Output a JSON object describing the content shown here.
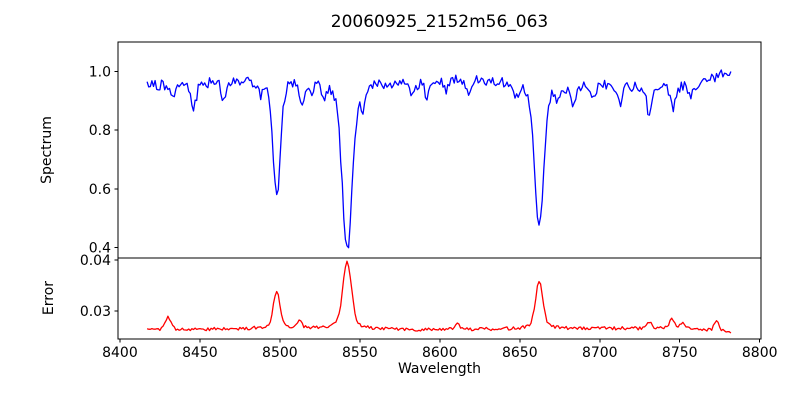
{
  "figure": {
    "title": "20060925_2152m56_063",
    "xlabel": "Wavelength",
    "ylabel_top": "Spectrum",
    "ylabel_bottom": "Error"
  },
  "chart_data": {
    "type": "line",
    "title": "20060925_2152m56_063",
    "xlabel": "Wavelength",
    "legend": "none",
    "grid": false,
    "x_range": [
      8417,
      8782
    ],
    "x_step": 1,
    "xlim": [
      8398.8,
      8800.8
    ],
    "xticks": [
      8400,
      8450,
      8500,
      8550,
      8600,
      8650,
      8700,
      8750,
      8800
    ],
    "subplots": [
      {
        "name": "spectrum",
        "ylabel": "Spectrum",
        "color": "#0000ff",
        "ylim": [
          0.365,
          1.1
        ],
        "yticks": [
          1.0,
          0.8,
          0.6,
          0.4
        ],
        "ytick_labels": [
          "1.0",
          "0.8",
          "0.6",
          "0.4"
        ],
        "baseline_anchors": [
          [
            8417,
            0.952
          ],
          [
            8435,
            0.962
          ],
          [
            8455,
            0.966
          ],
          [
            8475,
            0.972
          ],
          [
            8495,
            0.978
          ],
          [
            8510,
            0.98
          ],
          [
            8535,
            0.976
          ],
          [
            8555,
            0.968
          ],
          [
            8575,
            0.964
          ],
          [
            8590,
            0.968
          ],
          [
            8605,
            0.976
          ],
          [
            8625,
            0.974
          ],
          [
            8645,
            0.968
          ],
          [
            8665,
            0.964
          ],
          [
            8680,
            0.952
          ],
          [
            8700,
            0.958
          ],
          [
            8715,
            0.952
          ],
          [
            8735,
            0.95
          ],
          [
            8755,
            0.956
          ],
          [
            8768,
            0.97
          ],
          [
            8782,
            1.005
          ]
        ],
        "lines": [
          {
            "center": 8498.0,
            "width": 2.2,
            "amp": -0.4
          },
          {
            "center": 8542.1,
            "width": 3.0,
            "amp": -0.58
          },
          {
            "center": 8662.1,
            "width": 2.6,
            "amp": -0.5
          },
          {
            "center": 8433.0,
            "width": 1.4,
            "amp": -0.05
          },
          {
            "center": 8446.0,
            "width": 1.6,
            "amp": -0.09
          },
          {
            "center": 8465.0,
            "width": 1.4,
            "amp": -0.07
          },
          {
            "center": 8488.0,
            "width": 1.2,
            "amp": -0.04
          },
          {
            "center": 8514.0,
            "width": 1.5,
            "amp": -0.08
          },
          {
            "center": 8520.0,
            "width": 1.2,
            "amp": -0.04
          },
          {
            "center": 8527.0,
            "width": 1.3,
            "amp": -0.055
          },
          {
            "center": 8552.0,
            "width": 1.4,
            "amp": -0.07
          },
          {
            "center": 8583.0,
            "width": 1.3,
            "amp": -0.05
          },
          {
            "center": 8592.0,
            "width": 1.3,
            "amp": -0.055
          },
          {
            "center": 8604.0,
            "width": 1.2,
            "amp": -0.04
          },
          {
            "center": 8618.0,
            "width": 1.2,
            "amp": -0.045
          },
          {
            "center": 8648.0,
            "width": 1.3,
            "amp": -0.045
          },
          {
            "center": 8674.0,
            "width": 1.3,
            "amp": -0.04
          },
          {
            "center": 8683.0,
            "width": 1.4,
            "amp": -0.06
          },
          {
            "center": 8696.0,
            "width": 1.2,
            "amp": -0.045
          },
          {
            "center": 8713.0,
            "width": 1.3,
            "amp": -0.055
          },
          {
            "center": 8731.0,
            "width": 1.5,
            "amp": -0.1
          },
          {
            "center": 8746.0,
            "width": 1.4,
            "amp": -0.08
          },
          {
            "center": 8757.0,
            "width": 1.2,
            "amp": -0.05
          }
        ],
        "noise_amplitude": 0.017,
        "noise_seed": 20060925
      },
      {
        "name": "error",
        "ylabel": "Error",
        "color": "#ff0000",
        "ylim": [
          0.0245,
          0.0404
        ],
        "yticks": [
          0.04,
          0.03
        ],
        "ytick_labels": [
          "0.04",
          "0.03"
        ],
        "baseline_anchors": [
          [
            8417,
            0.0262
          ],
          [
            8450,
            0.0264
          ],
          [
            8500,
            0.0266
          ],
          [
            8550,
            0.0264
          ],
          [
            8600,
            0.0263
          ],
          [
            8650,
            0.0265
          ],
          [
            8700,
            0.0266
          ],
          [
            8750,
            0.0265
          ],
          [
            8782,
            0.0259
          ]
        ],
        "lines": [
          {
            "center": 8430.0,
            "width": 1.6,
            "amp": 0.0024
          },
          {
            "center": 8498.0,
            "width": 2.0,
            "amp": 0.0072
          },
          {
            "center": 8512.0,
            "width": 1.4,
            "amp": 0.0015
          },
          {
            "center": 8542.1,
            "width": 2.6,
            "amp": 0.0132
          },
          {
            "center": 8611.0,
            "width": 1.3,
            "amp": 0.0014
          },
          {
            "center": 8662.1,
            "width": 2.2,
            "amp": 0.0092
          },
          {
            "center": 8731.0,
            "width": 1.4,
            "amp": 0.0012
          },
          {
            "center": 8745.0,
            "width": 1.4,
            "amp": 0.002
          },
          {
            "center": 8752.0,
            "width": 1.2,
            "amp": 0.0015
          },
          {
            "center": 8773.0,
            "width": 1.3,
            "amp": 0.002
          }
        ],
        "noise_amplitude": 0.00032,
        "noise_seed": 2152
      }
    ]
  }
}
